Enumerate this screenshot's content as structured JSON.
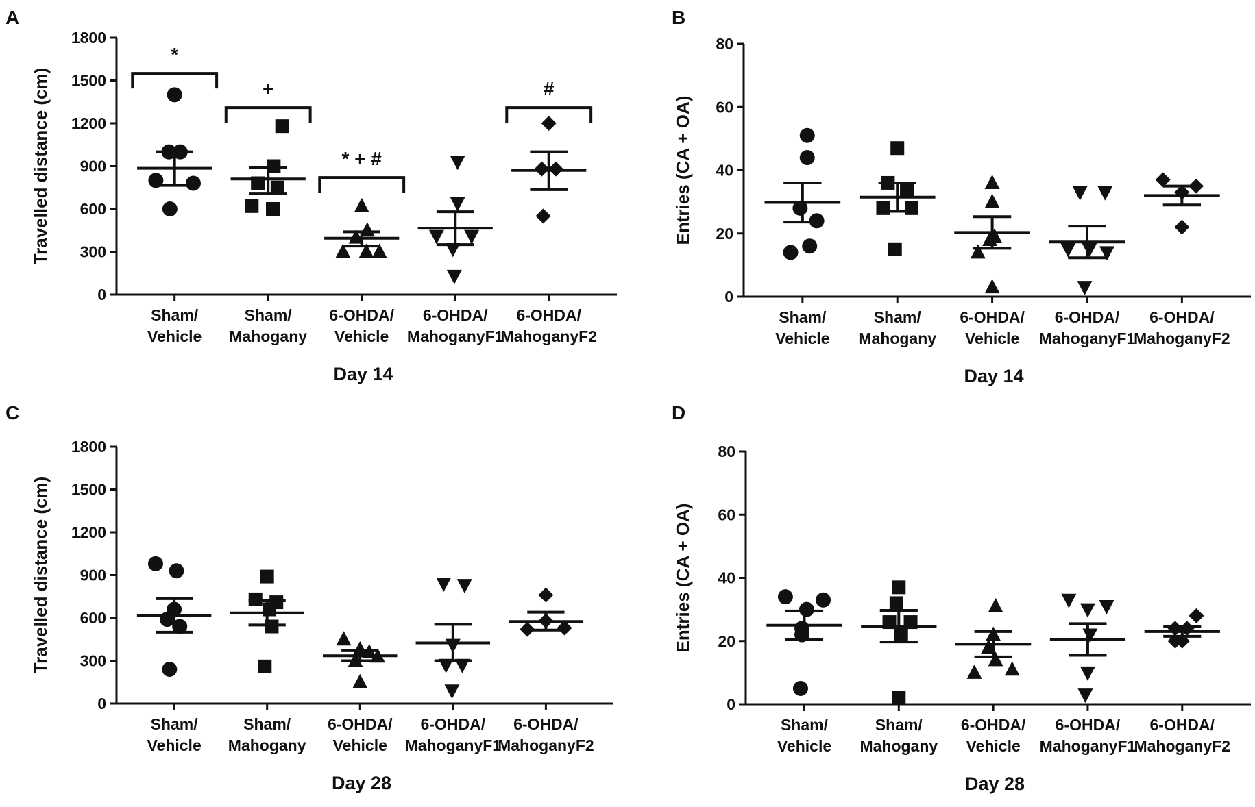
{
  "chart_data": [
    {
      "type": "scatter",
      "panel_label": "A",
      "ylabel": "Travelled distance (cm)",
      "xlabel": "Day 14",
      "ylim": [
        0,
        1800
      ],
      "yticks": [
        0,
        300,
        600,
        900,
        1200,
        1500,
        1800
      ],
      "categories": [
        "Sham/\nVehicle",
        "Sham/\nMahogany",
        "6-OHDA/\nVehicle",
        "6-OHDA/\nMahoganyF1",
        "6-OHDA/\nMahoganyF2"
      ],
      "groups": [
        {
          "marker": "circle",
          "points": [
            [
              0,
              1400
            ],
            [
              -0.12,
              1000
            ],
            [
              0.12,
              1000
            ],
            [
              -0.4,
              800
            ],
            [
              0.4,
              780
            ],
            [
              -0.1,
              600
            ]
          ],
          "mean": 885,
          "sem_low": 765,
          "sem_high": 1000
        },
        {
          "marker": "square",
          "points": [
            [
              0.3,
              1180
            ],
            [
              0.12,
              900
            ],
            [
              -0.22,
              780
            ],
            [
              0.2,
              750
            ],
            [
              -0.35,
              620
            ],
            [
              0.1,
              600
            ]
          ],
          "mean": 810,
          "sem_low": 710,
          "sem_high": 890
        },
        {
          "marker": "triangle",
          "points": [
            [
              0,
              620
            ],
            [
              0.12,
              450
            ],
            [
              -0.12,
              400
            ],
            [
              -0.4,
              300
            ],
            [
              0.1,
              300
            ],
            [
              0.38,
              300
            ]
          ],
          "mean": 395,
          "sem_low": 340,
          "sem_high": 440
        },
        {
          "marker": "triangle-down",
          "points": [
            [
              0.05,
              930
            ],
            [
              0.05,
              640
            ],
            [
              -0.4,
              410
            ],
            [
              0.35,
              410
            ],
            [
              -0.05,
              320
            ],
            [
              -0.02,
              130
            ]
          ],
          "mean": 465,
          "sem_low": 350,
          "sem_high": 580
        },
        {
          "marker": "diamond",
          "points": [
            [
              0,
              1200
            ],
            [
              -0.15,
              880
            ],
            [
              0.15,
              880
            ],
            [
              -0.12,
              550
            ]
          ],
          "mean": 870,
          "sem_low": 735,
          "sem_high": 1000
        }
      ],
      "annotations": [
        {
          "text": "*",
          "category": 0,
          "bracket": true,
          "value": 1550
        },
        {
          "text": "+",
          "category": 1,
          "bracket": true,
          "value": 1310
        },
        {
          "text": "* + #",
          "category": 2,
          "bracket": true,
          "value": 820
        },
        {
          "text": "#",
          "category": 4,
          "bracket": true,
          "value": 1310
        }
      ]
    },
    {
      "type": "scatter",
      "panel_label": "B",
      "ylabel": "Entries (CA + OA)",
      "xlabel": "Day 14",
      "ylim": [
        0,
        80
      ],
      "yticks": [
        0,
        20,
        40,
        60,
        80
      ],
      "categories": [
        "Sham/\nVehicle",
        "Sham/\nMahogany",
        "6-OHDA/\nVehicle",
        "6-OHDA/\nMahoganyF1",
        "6-OHDA/\nMahoganyF2"
      ],
      "groups": [
        {
          "marker": "circle",
          "points": [
            [
              0.1,
              51
            ],
            [
              0.1,
              44
            ],
            [
              -0.05,
              28
            ],
            [
              -0.25,
              14
            ],
            [
              0.15,
              16
            ],
            [
              0.3,
              24
            ]
          ],
          "mean": 29.8,
          "sem_low": 23.6,
          "sem_high": 36
        },
        {
          "marker": "square",
          "points": [
            [
              0,
              47
            ],
            [
              -0.2,
              36
            ],
            [
              0.2,
              34
            ],
            [
              -0.3,
              28
            ],
            [
              0.3,
              28
            ],
            [
              -0.05,
              15
            ]
          ],
          "mean": 31.5,
          "sem_low": 27,
          "sem_high": 36
        },
        {
          "marker": "triangle",
          "points": [
            [
              0,
              36
            ],
            [
              0,
              30
            ],
            [
              0.05,
              19
            ],
            [
              -0.05,
              18
            ],
            [
              -0.3,
              14
            ],
            [
              0,
              3
            ]
          ],
          "mean": 20.3,
          "sem_low": 15.3,
          "sem_high": 25.3
        },
        {
          "marker": "triangle-down",
          "points": [
            [
              -0.15,
              33
            ],
            [
              0.38,
              33
            ],
            [
              -0.4,
              15
            ],
            [
              0.05,
              15
            ],
            [
              0.42,
              14
            ],
            [
              -0.05,
              3
            ]
          ],
          "mean": 17.3,
          "sem_low": 12.3,
          "sem_high": 22.3
        },
        {
          "marker": "diamond",
          "points": [
            [
              -0.4,
              37
            ],
            [
              0.3,
              35
            ],
            [
              0,
              33
            ],
            [
              0,
              22
            ]
          ],
          "mean": 32,
          "sem_low": 29,
          "sem_high": 35
        }
      ]
    },
    {
      "type": "scatter",
      "panel_label": "C",
      "ylabel": "Travelled distance (cm)",
      "xlabel": "Day 28",
      "ylim": [
        0,
        1800
      ],
      "yticks": [
        0,
        300,
        600,
        900,
        1200,
        1500,
        1800
      ],
      "categories": [
        "Sham/\nVehicle",
        "Sham/\nMahogany",
        "6-OHDA/\nVehicle",
        "6-OHDA/\nMahoganyF1",
        "6-OHDA/\nMahoganyF2"
      ],
      "groups": [
        {
          "marker": "circle",
          "points": [
            [
              -0.4,
              980
            ],
            [
              0.05,
              930
            ],
            [
              0,
              660
            ],
            [
              -0.15,
              590
            ],
            [
              0.12,
              540
            ],
            [
              -0.1,
              240
            ]
          ],
          "mean": 615,
          "sem_low": 500,
          "sem_high": 735
        },
        {
          "marker": "square",
          "points": [
            [
              0,
              890
            ],
            [
              -0.25,
              730
            ],
            [
              0.2,
              710
            ],
            [
              0.05,
              660
            ],
            [
              0.1,
              540
            ],
            [
              -0.05,
              260
            ]
          ],
          "mean": 635,
          "sem_low": 550,
          "sem_high": 720
        },
        {
          "marker": "triangle",
          "points": [
            [
              -0.35,
              450
            ],
            [
              0,
              380
            ],
            [
              0.2,
              360
            ],
            [
              0.38,
              330
            ],
            [
              -0.1,
              300
            ],
            [
              0,
              150
            ]
          ],
          "mean": 335,
          "sem_low": 300,
          "sem_high": 370
        },
        {
          "marker": "triangle-down",
          "points": [
            [
              -0.2,
              840
            ],
            [
              0.25,
              830
            ],
            [
              0,
              410
            ],
            [
              -0.15,
              270
            ],
            [
              0.2,
              270
            ],
            [
              -0.02,
              90
            ]
          ],
          "mean": 425,
          "sem_low": 300,
          "sem_high": 555
        },
        {
          "marker": "diamond",
          "points": [
            [
              0,
              760
            ],
            [
              -0.4,
              520
            ],
            [
              0,
              580
            ],
            [
              0.4,
              530
            ]
          ],
          "mean": 575,
          "sem_low": 515,
          "sem_high": 640
        }
      ]
    },
    {
      "type": "scatter",
      "panel_label": "D",
      "ylabel": "Entries (CA + OA)",
      "xlabel": "Day 28",
      "ylim": [
        0,
        80
      ],
      "yticks": [
        0,
        20,
        40,
        60,
        80
      ],
      "categories": [
        "Sham/\nVehicle",
        "Sham/\nMahogany",
        "6-OHDA/\nVehicle",
        "6-OHDA/\nMahoganyF1",
        "6-OHDA/\nMahoganyF2"
      ],
      "groups": [
        {
          "marker": "circle",
          "points": [
            [
              -0.4,
              34
            ],
            [
              0.4,
              33
            ],
            [
              0.05,
              30
            ],
            [
              -0.05,
              24
            ],
            [
              -0.05,
              22
            ],
            [
              -0.08,
              5
            ]
          ],
          "mean": 25,
          "sem_low": 20.5,
          "sem_high": 29.5
        },
        {
          "marker": "square",
          "points": [
            [
              0,
              37
            ],
            [
              -0.05,
              32
            ],
            [
              -0.2,
              26
            ],
            [
              0.25,
              26
            ],
            [
              0.05,
              22
            ],
            [
              0,
              2
            ]
          ],
          "mean": 24.7,
          "sem_low": 19.7,
          "sem_high": 29.7
        },
        {
          "marker": "triangle",
          "points": [
            [
              0.05,
              31
            ],
            [
              0,
              22
            ],
            [
              -0.1,
              18
            ],
            [
              0.05,
              14
            ],
            [
              -0.4,
              10
            ],
            [
              0.4,
              11
            ]
          ],
          "mean": 19,
          "sem_low": 15,
          "sem_high": 23
        },
        {
          "marker": "triangle-down",
          "points": [
            [
              -0.4,
              33
            ],
            [
              0,
              30
            ],
            [
              0.4,
              31
            ],
            [
              0.05,
              22
            ],
            [
              0,
              10
            ],
            [
              -0.05,
              3
            ]
          ],
          "mean": 20.5,
          "sem_low": 15.5,
          "sem_high": 25.5
        },
        {
          "marker": "diamond",
          "points": [
            [
              -0.15,
              24
            ],
            [
              0.1,
              24
            ],
            [
              0.3,
              28
            ],
            [
              0,
              20
            ],
            [
              -0.15,
              20
            ]
          ],
          "mean": 23,
          "sem_low": 21.5,
          "sem_high": 24.5
        }
      ]
    }
  ]
}
